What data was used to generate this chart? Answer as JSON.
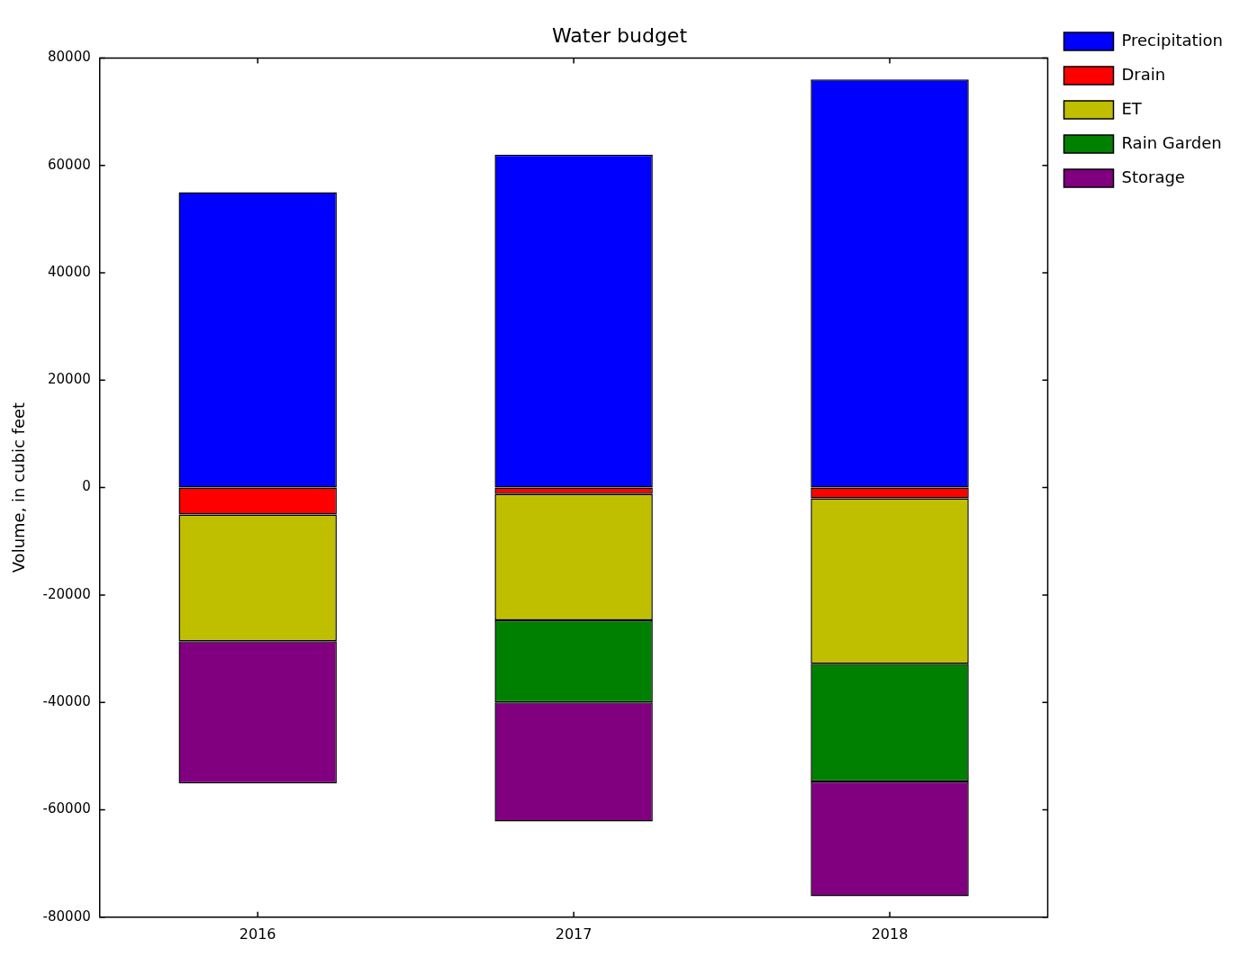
{
  "chart_data": {
    "type": "bar",
    "title": "Water budget",
    "ylabel": "Volume, in cubic feet",
    "categories": [
      "2016",
      "2017",
      "2018"
    ],
    "stacked": true,
    "legend": "top right",
    "grid": false,
    "ylim": [
      -80000,
      80000
    ],
    "yticks": [
      -80000,
      -60000,
      -40000,
      -20000,
      0,
      20000,
      40000,
      60000,
      80000
    ],
    "series": [
      {
        "name": "Precipitation",
        "color": "#0000ff",
        "values": [
          55000,
          62000,
          76000
        ]
      },
      {
        "name": "Drain",
        "color": "#ff0000",
        "values": [
          -5000,
          -1200,
          -2000
        ]
      },
      {
        "name": "ET",
        "color": "#bfbf00",
        "values": [
          -23600,
          -23500,
          -30800
        ]
      },
      {
        "name": "Rain Garden",
        "color": "#008000",
        "values": [
          0,
          -15300,
          -21900
        ]
      },
      {
        "name": "Storage",
        "color": "#800080",
        "values": [
          -26500,
          -22200,
          -21400
        ]
      }
    ]
  }
}
